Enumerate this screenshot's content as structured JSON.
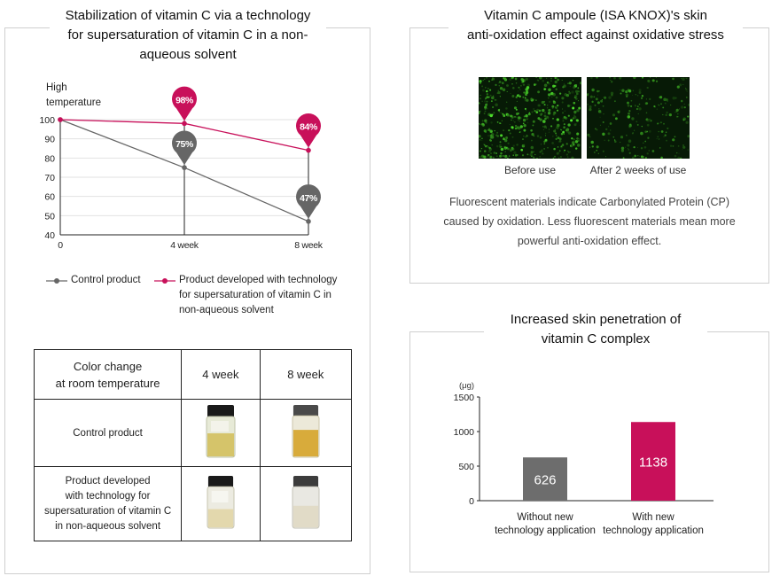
{
  "left_panel": {
    "title": "Stabilization of vitamin C via a technology for supersaturation of vitamin C in a non-aqueous solvent",
    "title_lines": [
      "Stabilization of vitamin C via a technology",
      "for supersaturation of vitamin C in a non-",
      "aqueous solvent"
    ],
    "legend": {
      "control": "Control product",
      "developed_lines": [
        "Product developed with technology",
        "for supersaturation of vitamin C in",
        "non-aqueous solvent"
      ]
    },
    "table": {
      "header": [
        "Color change at room temperature",
        "4 week",
        "8 week"
      ],
      "header_first_lines": [
        "Color change",
        "at room temperature"
      ],
      "rows": [
        {
          "label_lines": [
            "Control product"
          ]
        },
        {
          "label_lines": [
            "Product developed",
            "with technology for",
            "supersaturation of vitamin C",
            "in non-aqueous solvent"
          ]
        }
      ]
    }
  },
  "chart_data": [
    {
      "type": "line",
      "ylabel": "High temperature",
      "ylabel_lines": [
        "High",
        "temperature"
      ],
      "x": [
        "0",
        "4 week",
        "8 week"
      ],
      "ylim": [
        40,
        100
      ],
      "yticks": [
        40,
        50,
        60,
        70,
        80,
        90,
        100
      ],
      "series": [
        {
          "name": "Control product",
          "values": [
            100,
            75,
            47
          ],
          "labels": [
            "",
            "75%",
            "47%"
          ],
          "color": "#666666"
        },
        {
          "name": "Product developed with technology for supersaturation of vitamin C in non-aqueous solvent",
          "values": [
            100,
            98,
            84
          ],
          "labels": [
            "",
            "98%",
            "84%"
          ],
          "color": "#c8105a"
        }
      ]
    },
    {
      "type": "bar",
      "title": "Increased skin penetration of vitamin C complex",
      "title_lines": [
        "Increased skin penetration of",
        "vitamin C complex"
      ],
      "unit": "(μg)",
      "categories": [
        "Without new technology application",
        "With new technology application"
      ],
      "category_lines": [
        [
          "Without new",
          "technology application"
        ],
        [
          "With new",
          "technology application"
        ]
      ],
      "values": [
        626,
        1138
      ],
      "colors": [
        "#6d6d6d",
        "#c8105a"
      ],
      "ylim": [
        0,
        1500
      ],
      "yticks": [
        0,
        500,
        1000,
        1500
      ]
    }
  ],
  "right_top_panel": {
    "title_lines": [
      "Vitamin C ampoule (ISA KNOX)'s skin",
      "anti-oxidation effect against oxidative stress"
    ],
    "captions": [
      "Before use",
      "After 2 weeks of use"
    ],
    "description_lines": [
      "Fluorescent materials indicate Carbonylated Protein (CP)",
      "caused by oxidation. Less fluorescent materials mean more",
      "powerful anti-oxidation effect."
    ]
  },
  "colors": {
    "accent": "#c8105a",
    "control": "#666666",
    "fluorescent": "#3fae2a"
  }
}
